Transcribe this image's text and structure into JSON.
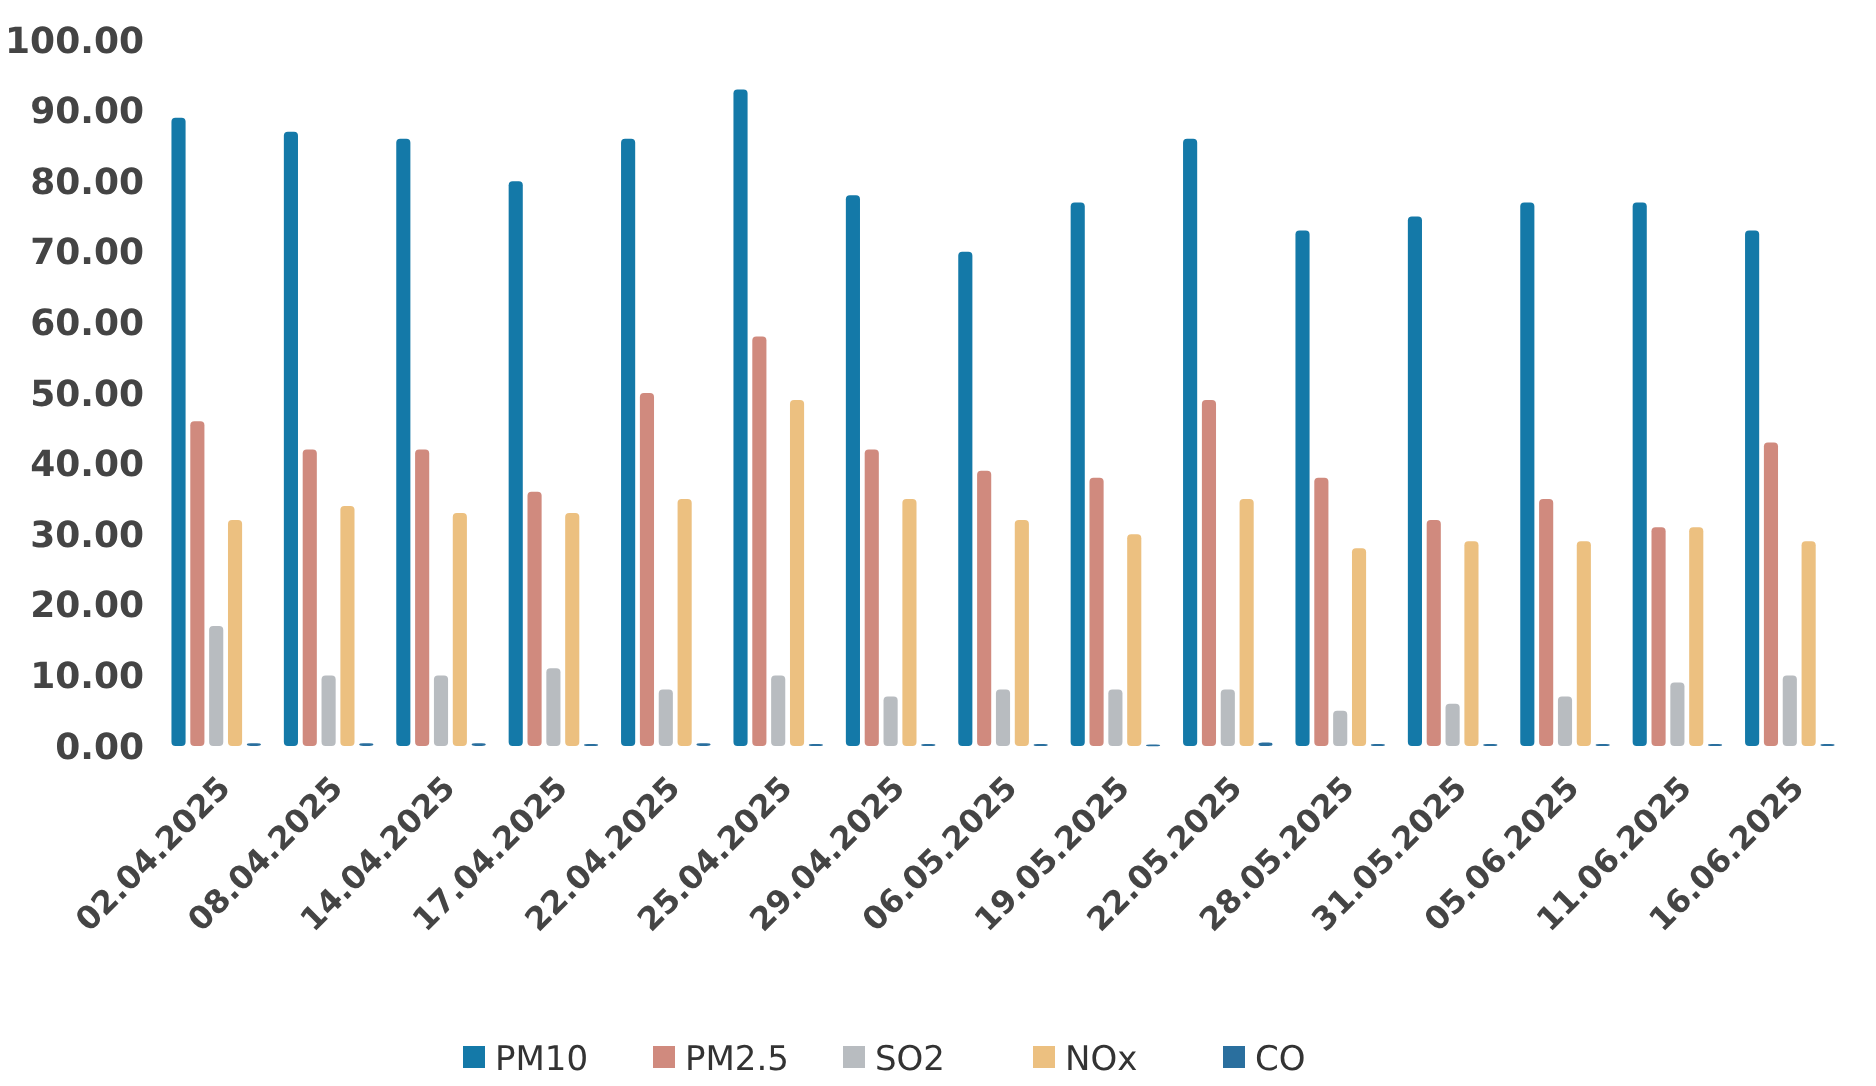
{
  "chart_data": {
    "type": "bar",
    "categories": [
      "02.04.2025",
      "08.04.2025",
      "14.04.2025",
      "17.04.2025",
      "22.04.2025",
      "25.04.2025",
      "29.04.2025",
      "06.05.2025",
      "19.05.2025",
      "22.05.2025",
      "28.05.2025",
      "31.05.2025",
      "05.06.2025",
      "11.06.2025",
      "16.06.2025"
    ],
    "series": [
      {
        "name": "PM10",
        "color": "#1479a8",
        "values": [
          89,
          87,
          86,
          80,
          86,
          93,
          78,
          70,
          77,
          86,
          73,
          75,
          77,
          77,
          73
        ]
      },
      {
        "name": "PM2.5",
        "color": "#d08a7e",
        "values": [
          46,
          42,
          42,
          36,
          50,
          58,
          42,
          39,
          38,
          49,
          38,
          32,
          35,
          31,
          43
        ]
      },
      {
        "name": "SO2",
        "color": "#b8bcc0",
        "values": [
          17,
          10,
          10,
          11,
          8,
          10,
          7,
          8,
          8,
          8,
          5,
          6,
          7,
          9,
          10
        ]
      },
      {
        "name": "NOx",
        "color": "#ecc080",
        "values": [
          32,
          34,
          33,
          33,
          35,
          49,
          35,
          32,
          30,
          35,
          28,
          29,
          29,
          31,
          29
        ]
      },
      {
        "name": "CO",
        "color": "#2a6f9e",
        "values": [
          0.4,
          0.4,
          0.4,
          0.3,
          0.4,
          0.3,
          0.3,
          0.3,
          0.2,
          0.5,
          0.3,
          0.3,
          0.3,
          0.3,
          0.3
        ]
      }
    ],
    "ylim": [
      0,
      100
    ],
    "yticks": [
      {
        "value": 0,
        "label": "0.00"
      },
      {
        "value": 10,
        "label": "10.00"
      },
      {
        "value": 20,
        "label": "20.00"
      },
      {
        "value": 30,
        "label": "30.00"
      },
      {
        "value": 40,
        "label": "40.00"
      },
      {
        "value": 50,
        "label": "50.00"
      },
      {
        "value": 60,
        "label": "60.00"
      },
      {
        "value": 70,
        "label": "70.00"
      },
      {
        "value": 80,
        "label": "80.00"
      },
      {
        "value": 90,
        "label": "90.00"
      },
      {
        "value": 100,
        "label": "100.00"
      }
    ],
    "grid": false,
    "legend": "bottom"
  }
}
